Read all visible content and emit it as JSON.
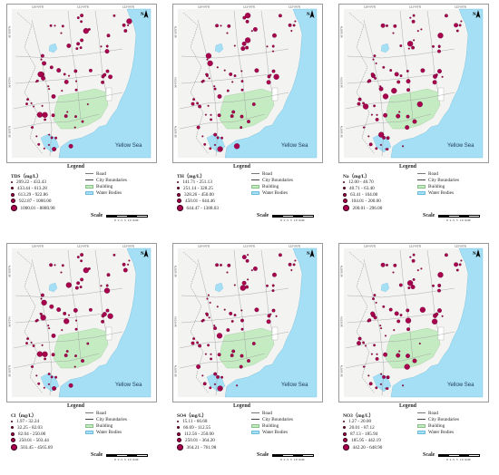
{
  "common": {
    "legend_title": "Legend",
    "road": "Road",
    "city_boundaries": "City Boundaries",
    "building": "Building",
    "water_bodies": "Water Bodies",
    "scale_label": "Scale",
    "scale_units": "0 2.5 5 10 KM",
    "sea_label": "Yellow Sea",
    "north_label": "N",
    "lon_ticks": [
      "120°0'0\"E",
      "121°0'0\"E",
      "122°0'0\"E"
    ],
    "lat_ticks": [
      "36°30'0\"N",
      "36°0'0\"N",
      "35°30'0\"N"
    ]
  },
  "colors": {
    "land": "#f3f3f1",
    "building": "#c5ebc2",
    "water": "#a5dff5",
    "point": "#a8004e",
    "road": "#9a9a9a"
  },
  "panels": [
    {
      "parameter": "TDS（mg/L）",
      "classes": [
        "209.22 - 433.43",
        "433.44 - 613.28",
        "613.29 - 922.86",
        "922.87 - 1000.00",
        "1000.01 - 8880.98"
      ]
    },
    {
      "parameter": "TH（mg/L）",
      "classes": [
        "141.71 - 251.13",
        "251.14 - 328.25",
        "328.26 - 450.00",
        "450.01 - 644.46",
        "644.47 - 1388.03"
      ]
    },
    {
      "parameter": "Na（mg/L）",
      "classes": [
        "12.00 - 40.70",
        "40.71 - 63.40",
        "63.41 - 104.00",
        "104.01 - 200.00",
        "200.01 - 296.00"
      ]
    },
    {
      "parameter": "Cl（mg/L）",
      "classes": [
        "1.97 - 32.24",
        "32.25 - 82.03",
        "82.04 - 250.00",
        "250.01 - 503.44",
        "503.45 - 4565.69"
      ]
    },
    {
      "parameter": "SO4（mg/L）",
      "classes": [
        "15.11 - 66.68",
        "66.69 - 112.55",
        "112.56 - 250.00",
        "250.01 - 364.20",
        "364.21 - 761.98"
      ]
    },
    {
      "parameter": "NO3（mg/L）",
      "classes": [
        "1.27 - 20.00",
        "20.01 - 87.12",
        "87.13 - 185.94",
        "185.95 - 442.19",
        "442.20 - 648.90"
      ]
    }
  ]
}
